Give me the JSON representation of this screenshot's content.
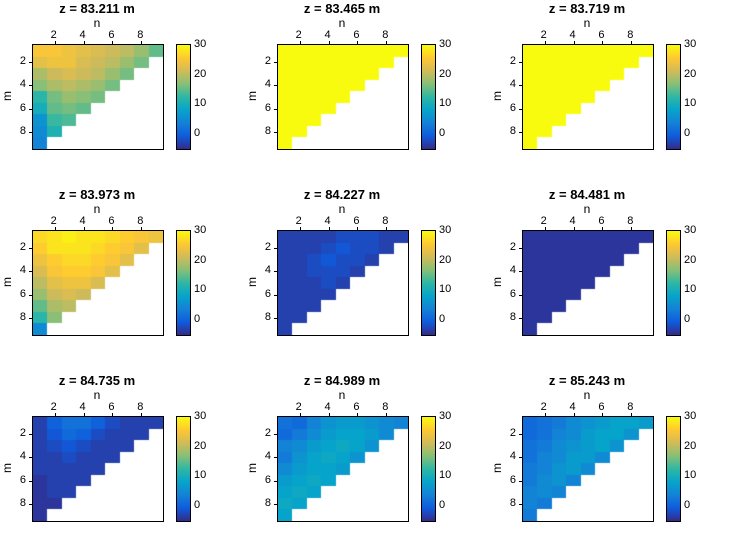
{
  "figure": {
    "background": "#ffffff"
  },
  "chart_data": {
    "type": "heatmap",
    "layout": "3x3 grid of triangular heatmap panels, each with its own colorbar",
    "xlabel": "n",
    "ylabel": "m",
    "x_ticks": [
      2,
      4,
      6,
      8
    ],
    "y_ticks": [
      2,
      4,
      6,
      8
    ],
    "grid_size": {
      "cols": 9,
      "rows": 9
    },
    "vmin": -5,
    "vmax": 30,
    "colorbar_ticks": [
      30,
      20,
      10,
      0
    ],
    "colormap_name": "parula",
    "colormap_stops": [
      "#352a87",
      "#0f5cdd",
      "#1481d6",
      "#06a4ca",
      "#2eb7a4",
      "#87bf77",
      "#d1bb59",
      "#fec832",
      "#f9fb0e"
    ],
    "panels": [
      {
        "title": "z = 83.211 m",
        "values": [
          [
            25,
            25,
            24,
            23,
            22,
            21,
            20,
            18,
            15
          ],
          [
            23,
            24,
            24,
            22,
            21,
            20,
            18,
            16
          ],
          [
            19,
            21,
            22,
            21,
            20,
            18,
            16
          ],
          [
            17,
            19,
            20,
            19,
            18,
            16
          ],
          [
            12,
            16,
            18,
            17,
            16
          ],
          [
            10,
            15,
            16,
            15
          ],
          [
            6,
            13,
            14
          ],
          [
            5,
            11
          ],
          [
            4
          ]
        ]
      },
      {
        "title": "z = 83.465 m",
        "values": [
          [
            30,
            30,
            30,
            30,
            30,
            30,
            30,
            30,
            30
          ],
          [
            30,
            30,
            30,
            30,
            30,
            30,
            30,
            30
          ],
          [
            30,
            30,
            30,
            30,
            30,
            30,
            30
          ],
          [
            30,
            30,
            30,
            30,
            30,
            30
          ],
          [
            30,
            30,
            30,
            30,
            30
          ],
          [
            30,
            30,
            30,
            30
          ],
          [
            30,
            30,
            30
          ],
          [
            30,
            30
          ],
          [
            30
          ]
        ]
      },
      {
        "title": "z = 83.719 m",
        "values": [
          [
            30,
            30,
            30,
            30,
            30,
            30,
            30,
            30,
            30
          ],
          [
            30,
            30,
            30,
            30,
            30,
            30,
            30,
            30
          ],
          [
            30,
            30,
            30,
            30,
            30,
            30,
            30
          ],
          [
            30,
            30,
            30,
            30,
            30,
            30
          ],
          [
            30,
            30,
            30,
            30,
            30
          ],
          [
            30,
            30,
            30,
            30
          ],
          [
            30,
            30,
            30
          ],
          [
            30,
            30
          ],
          [
            30
          ]
        ]
      },
      {
        "title": "z = 83.973 m",
        "values": [
          [
            27,
            28,
            29,
            28,
            28,
            27,
            26,
            25,
            24
          ],
          [
            26,
            28,
            28,
            28,
            27,
            26,
            25,
            23
          ],
          [
            24,
            26,
            27,
            27,
            26,
            25,
            23
          ],
          [
            22,
            25,
            26,
            26,
            25,
            23
          ],
          [
            20,
            23,
            24,
            24,
            22
          ],
          [
            18,
            21,
            22,
            21
          ],
          [
            15,
            19,
            20
          ],
          [
            12,
            17
          ],
          [
            5
          ]
        ]
      },
      {
        "title": "z = 84.227 m",
        "values": [
          [
            -3,
            -3,
            -3,
            -3,
            -2,
            -2,
            -2,
            -3,
            -3
          ],
          [
            -3,
            -3,
            -3,
            -2,
            -1,
            -2,
            -2,
            -3
          ],
          [
            -3,
            -3,
            -2,
            -1,
            -2,
            -2,
            -3
          ],
          [
            -3,
            -3,
            -2,
            -2,
            -2,
            -3
          ],
          [
            -3,
            -3,
            -3,
            -2,
            -3
          ],
          [
            -3,
            -3,
            -3,
            -3
          ],
          [
            -3,
            -3,
            -3
          ],
          [
            -3,
            -3
          ],
          [
            -3
          ]
        ]
      },
      {
        "title": "z = 84.481 m",
        "values": [
          [
            -4,
            -4,
            -4,
            -4,
            -4,
            -4,
            -4,
            -4,
            -4
          ],
          [
            -4,
            -4,
            -4,
            -4,
            -4,
            -4,
            -4,
            -4
          ],
          [
            -4,
            -4,
            -4,
            -4,
            -4,
            -4,
            -4
          ],
          [
            -4,
            -4,
            -4,
            -4,
            -4,
            -4
          ],
          [
            -4,
            -4,
            -4,
            -4,
            -4
          ],
          [
            -4,
            -4,
            -4,
            -4
          ],
          [
            -4,
            -4,
            -4
          ],
          [
            -4,
            -4
          ],
          [
            -4
          ]
        ]
      },
      {
        "title": "z = 84.735 m",
        "values": [
          [
            -3,
            0,
            2,
            2,
            0,
            -2,
            -3,
            -3,
            -3
          ],
          [
            -3,
            -1,
            1,
            0,
            -2,
            -3,
            -3,
            -3
          ],
          [
            -3,
            -2,
            -1,
            -2,
            -3,
            -3,
            -3
          ],
          [
            -3,
            -3,
            -2,
            -3,
            -3,
            -3
          ],
          [
            -3,
            -3,
            -3,
            -3,
            -3
          ],
          [
            -4,
            -3,
            -3,
            -3
          ],
          [
            -4,
            -3,
            -3
          ],
          [
            -4,
            -4
          ],
          [
            -4
          ]
        ]
      },
      {
        "title": "z = 84.989 m",
        "values": [
          [
            2,
            1,
            4,
            6,
            7,
            7,
            6,
            5,
            4
          ],
          [
            1,
            3,
            5,
            7,
            8,
            8,
            7,
            5
          ],
          [
            4,
            5,
            7,
            8,
            9,
            8,
            6
          ],
          [
            3,
            6,
            8,
            9,
            8,
            6
          ],
          [
            5,
            7,
            8,
            8,
            7
          ],
          [
            7,
            8,
            9,
            8
          ],
          [
            8,
            9,
            8
          ],
          [
            9,
            8
          ],
          [
            8
          ]
        ]
      },
      {
        "title": "z = 85.243 m",
        "values": [
          [
            1,
            2,
            3,
            5,
            6,
            7,
            8,
            8,
            7
          ],
          [
            1,
            2,
            4,
            5,
            7,
            8,
            8,
            6
          ],
          [
            2,
            3,
            5,
            6,
            7,
            8,
            6
          ],
          [
            2,
            4,
            5,
            7,
            7,
            5
          ],
          [
            3,
            4,
            6,
            7,
            5
          ],
          [
            3,
            5,
            6,
            4
          ],
          [
            4,
            5,
            4
          ],
          [
            4,
            3
          ],
          [
            3
          ]
        ]
      }
    ]
  }
}
